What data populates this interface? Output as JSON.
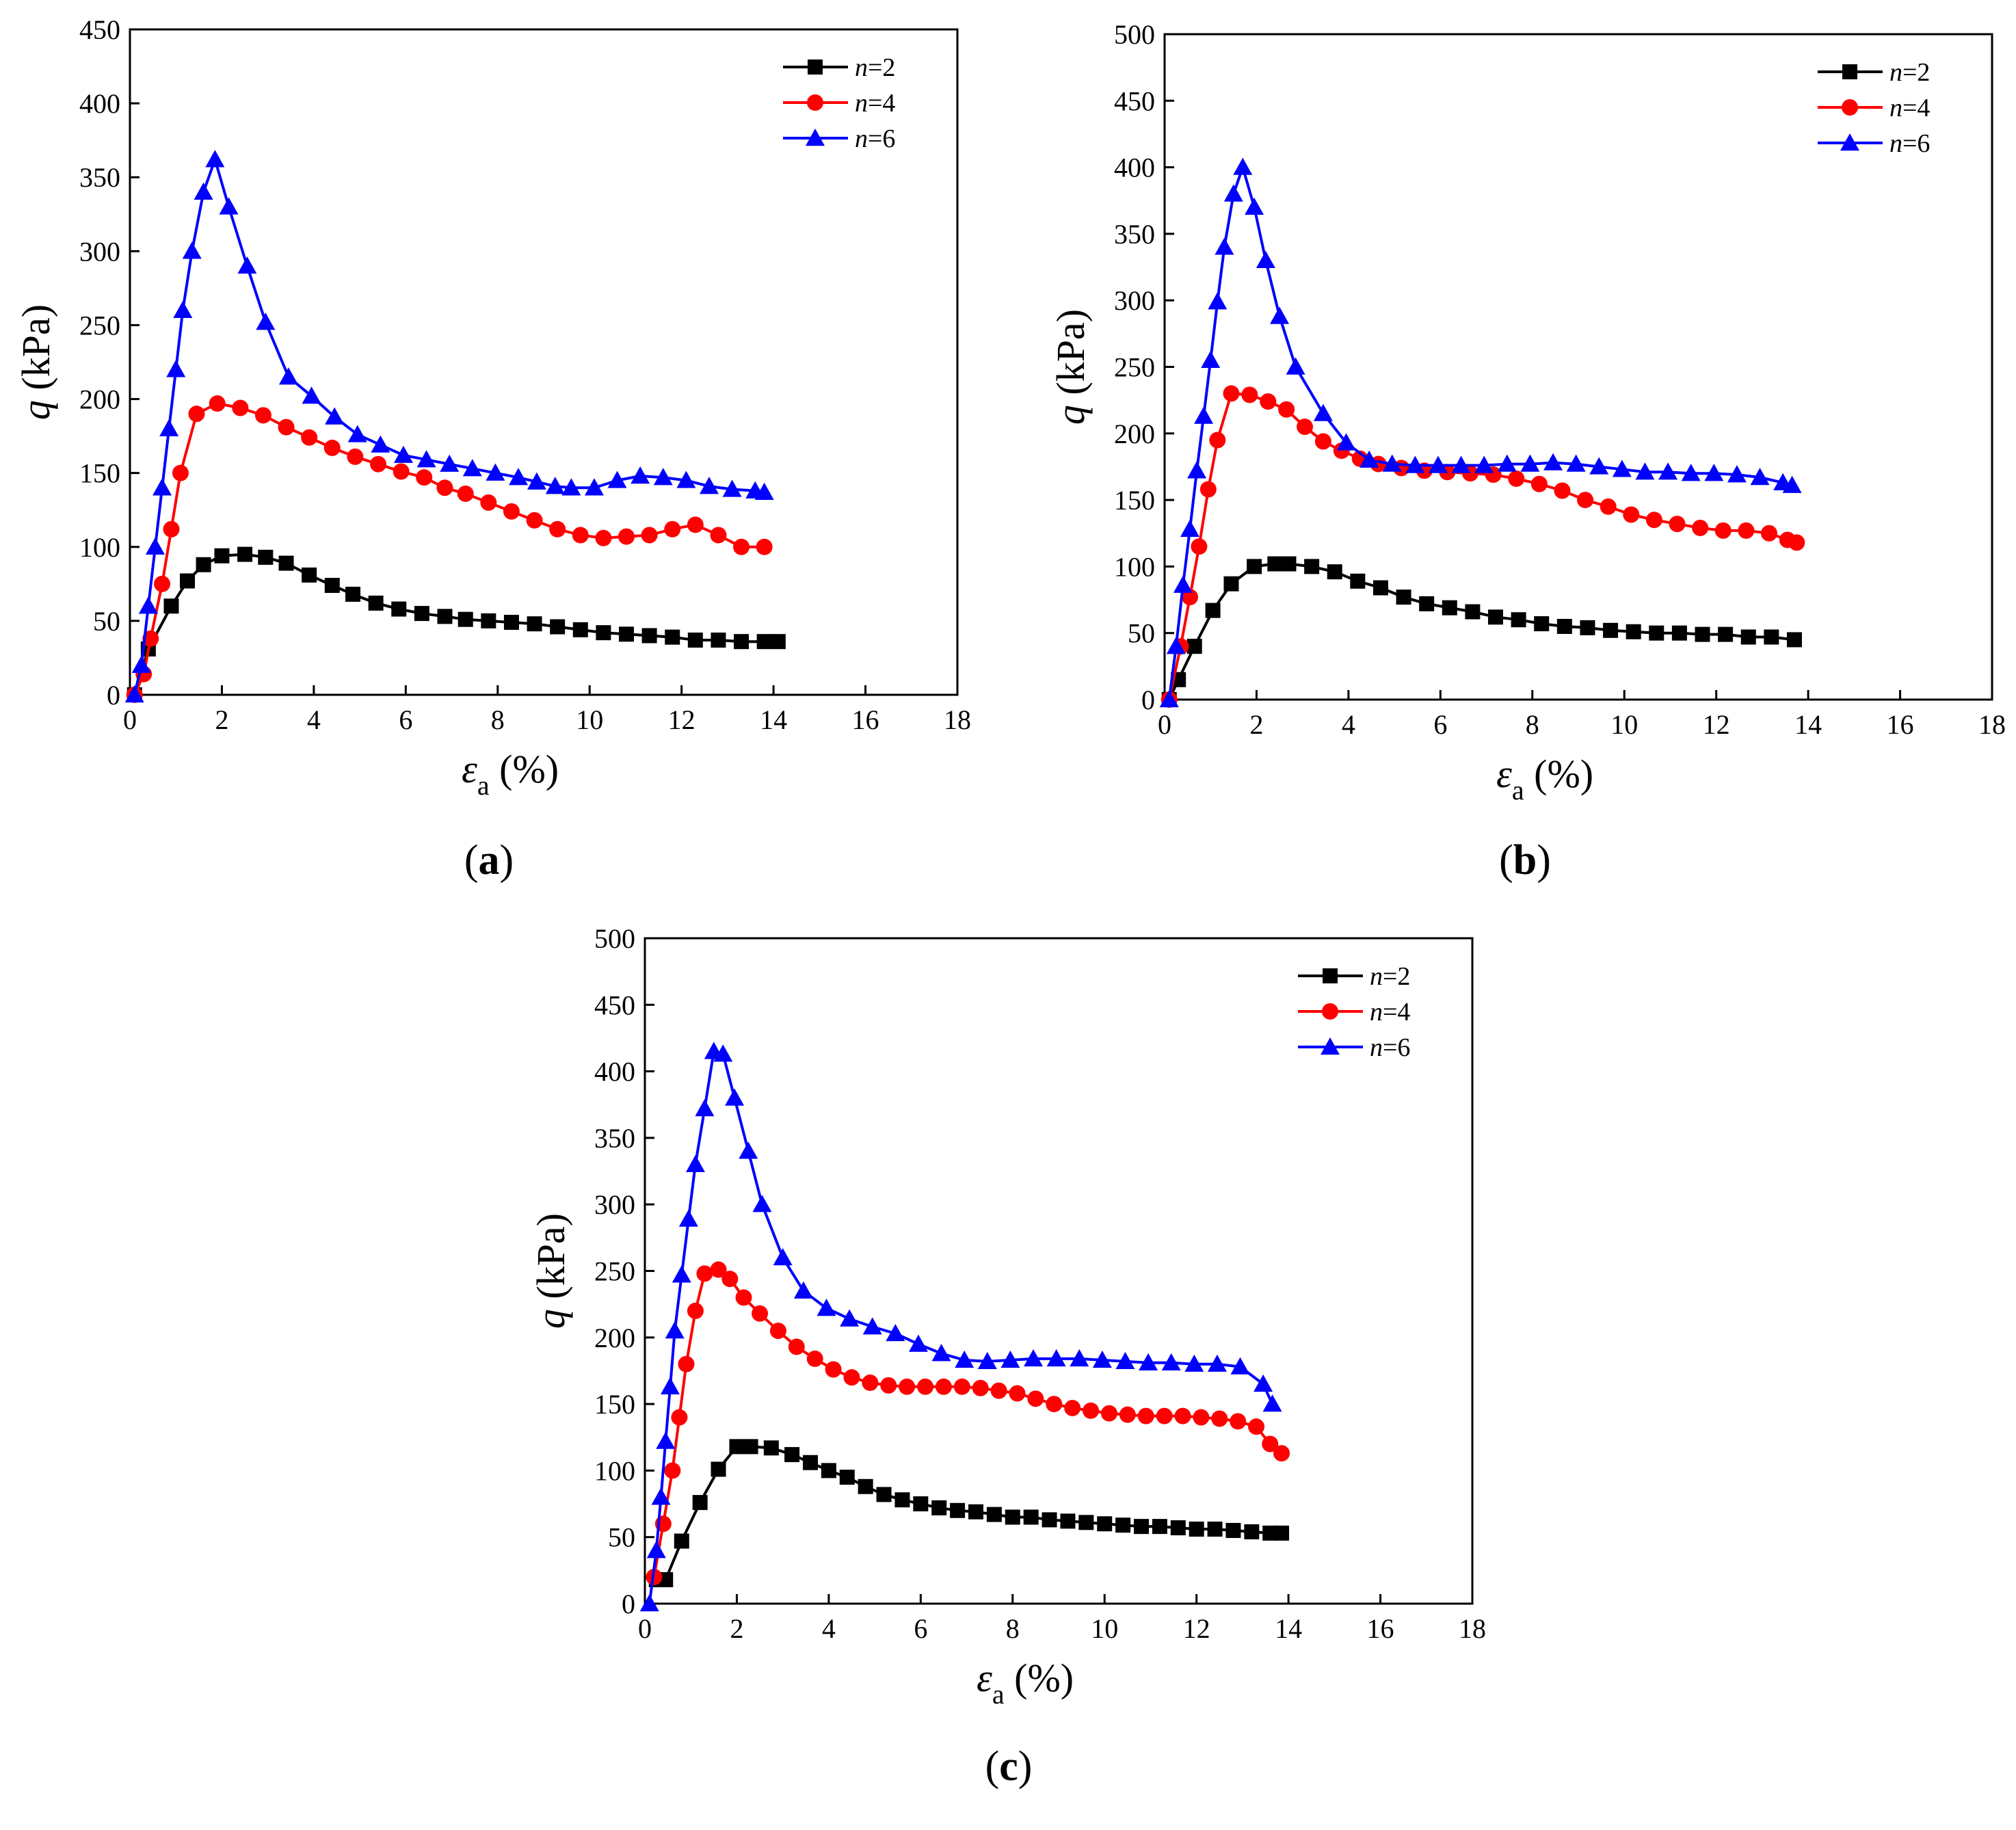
{
  "figure": {
    "panels": [
      {
        "id": "a",
        "label_open": "(",
        "label_letter": "a",
        "label_close": ")"
      },
      {
        "id": "b",
        "label_open": "(",
        "label_letter": "b",
        "label_close": ")"
      },
      {
        "id": "c",
        "label_open": "(",
        "label_letter": "c",
        "label_close": ")"
      }
    ]
  },
  "chart_data": [
    {
      "panel": "a",
      "type": "line",
      "xlabel_symbol": "ε",
      "xlabel_subscript": "a",
      "xlabel_unit": "(%)",
      "ylabel_symbol": "q",
      "ylabel_unit": "(kPa)",
      "xlim": [
        0,
        18
      ],
      "ylim": [
        0,
        450
      ],
      "xticks": [
        0,
        2,
        4,
        6,
        8,
        10,
        12,
        14,
        16,
        18
      ],
      "yticks": [
        0,
        50,
        100,
        150,
        200,
        250,
        300,
        350,
        400,
        450
      ],
      "legend_position": "top-right",
      "series": [
        {
          "name_var": "n",
          "name_value": "=2",
          "color": "#000000",
          "marker": "square",
          "x": [
            0.1,
            0.4,
            0.9,
            1.25,
            1.6,
            2.0,
            2.5,
            2.95,
            3.4,
            3.9,
            4.4,
            4.85,
            5.35,
            5.85,
            6.35,
            6.85,
            7.3,
            7.8,
            8.3,
            8.8,
            9.3,
            9.8,
            10.3,
            10.8,
            11.3,
            11.8,
            12.3,
            12.8,
            13.3,
            13.8,
            14.1
          ],
          "y": [
            0,
            31,
            60,
            77,
            88,
            94,
            95,
            93,
            89,
            81,
            74,
            68,
            62,
            58,
            55,
            53,
            51,
            50,
            49,
            48,
            46,
            44,
            42,
            41,
            40,
            39,
            37,
            37,
            36,
            36,
            36
          ]
        },
        {
          "name_var": "n",
          "name_value": "=4",
          "color": "#ff0000",
          "marker": "circle",
          "x": [
            0.1,
            0.3,
            0.45,
            0.7,
            0.9,
            1.1,
            1.45,
            1.9,
            2.4,
            2.9,
            3.4,
            3.9,
            4.4,
            4.9,
            5.4,
            5.9,
            6.4,
            6.85,
            7.3,
            7.8,
            8.3,
            8.8,
            9.3,
            9.8,
            10.3,
            10.8,
            11.3,
            11.8,
            12.3,
            12.8,
            13.3,
            13.8
          ],
          "y": [
            0,
            14,
            38,
            75,
            112,
            150,
            190,
            197,
            194,
            189,
            181,
            174,
            167,
            161,
            156,
            151,
            147,
            140,
            136,
            130,
            124,
            118,
            112,
            108,
            106,
            107,
            108,
            112,
            115,
            108,
            100,
            100
          ]
        },
        {
          "name_var": "n",
          "name_value": "=6",
          "color": "#0000ff",
          "marker": "triangle",
          "x": [
            0.1,
            0.25,
            0.4,
            0.55,
            0.7,
            0.85,
            1.0,
            1.15,
            1.35,
            1.6,
            1.85,
            2.15,
            2.55,
            2.95,
            3.45,
            3.95,
            4.45,
            4.95,
            5.45,
            5.95,
            6.45,
            6.95,
            7.45,
            7.95,
            8.45,
            8.85,
            9.25,
            9.6,
            10.1,
            10.6,
            11.1,
            11.6,
            12.1,
            12.6,
            13.1,
            13.6,
            13.8
          ],
          "y": [
            0,
            20,
            60,
            100,
            140,
            180,
            220,
            260,
            300,
            340,
            362,
            330,
            290,
            252,
            215,
            202,
            188,
            176,
            169,
            162,
            159,
            156,
            153,
            150,
            147,
            144,
            141,
            140,
            140,
            145,
            148,
            147,
            145,
            141,
            139,
            138,
            137
          ]
        }
      ]
    },
    {
      "panel": "b",
      "type": "line",
      "xlabel_symbol": "ε",
      "xlabel_subscript": "a",
      "xlabel_unit": "(%)",
      "ylabel_symbol": "q",
      "ylabel_unit": "(kPa)",
      "xlim": [
        0,
        18
      ],
      "ylim": [
        0,
        500
      ],
      "xticks": [
        0,
        2,
        4,
        6,
        8,
        10,
        12,
        14,
        16,
        18
      ],
      "yticks": [
        0,
        50,
        100,
        150,
        200,
        250,
        300,
        350,
        400,
        450,
        500
      ],
      "legend_position": "top-right",
      "series": [
        {
          "name_var": "n",
          "name_value": "=2",
          "color": "#000000",
          "marker": "square",
          "x": [
            0.1,
            0.3,
            0.65,
            1.05,
            1.45,
            1.95,
            2.4,
            2.7,
            3.2,
            3.7,
            4.2,
            4.7,
            5.2,
            5.7,
            6.2,
            6.7,
            7.2,
            7.7,
            8.2,
            8.7,
            9.2,
            9.7,
            10.2,
            10.7,
            11.2,
            11.7,
            12.2,
            12.7,
            13.2,
            13.7
          ],
          "y": [
            0,
            15,
            40,
            67,
            87,
            100,
            102,
            102,
            100,
            96,
            89,
            84,
            77,
            72,
            69,
            66,
            62,
            60,
            57,
            55,
            54,
            52,
            51,
            50,
            50,
            49,
            49,
            47,
            47,
            45
          ]
        },
        {
          "name_var": "n",
          "name_value": "=4",
          "color": "#ff0000",
          "marker": "circle",
          "x": [
            0.1,
            0.35,
            0.55,
            0.75,
            0.95,
            1.15,
            1.45,
            1.85,
            2.25,
            2.65,
            3.05,
            3.45,
            3.85,
            4.25,
            4.65,
            5.15,
            5.65,
            6.15,
            6.65,
            7.15,
            7.65,
            8.15,
            8.65,
            9.15,
            9.65,
            10.15,
            10.65,
            11.15,
            11.65,
            12.15,
            12.65,
            13.15,
            13.55,
            13.75
          ],
          "y": [
            0,
            40,
            77,
            115,
            158,
            195,
            230,
            229,
            224,
            218,
            205,
            194,
            187,
            181,
            177,
            174,
            172,
            171,
            170,
            169,
            166,
            162,
            157,
            150,
            145,
            139,
            135,
            132,
            129,
            127,
            127,
            125,
            120,
            118
          ]
        },
        {
          "name_var": "n",
          "name_value": "=6",
          "color": "#0000ff",
          "marker": "triangle",
          "x": [
            0.1,
            0.25,
            0.4,
            0.55,
            0.7,
            0.85,
            1.0,
            1.15,
            1.3,
            1.5,
            1.7,
            1.95,
            2.2,
            2.5,
            2.85,
            3.45,
            3.95,
            4.45,
            4.95,
            5.45,
            5.95,
            6.45,
            6.95,
            7.45,
            7.95,
            8.45,
            8.95,
            9.45,
            9.95,
            10.45,
            10.95,
            11.45,
            11.95,
            12.45,
            12.95,
            13.45,
            13.65
          ],
          "y": [
            0,
            40,
            86,
            128,
            172,
            213,
            255,
            299,
            340,
            380,
            400,
            370,
            330,
            288,
            250,
            215,
            193,
            180,
            177,
            176,
            176,
            176,
            176,
            177,
            177,
            178,
            177,
            175,
            173,
            171,
            171,
            170,
            170,
            169,
            167,
            163,
            161
          ]
        }
      ]
    },
    {
      "panel": "c",
      "type": "line",
      "xlabel_symbol": "ε",
      "xlabel_subscript": "a",
      "xlabel_unit": "(%)",
      "ylabel_symbol": "q",
      "ylabel_unit": "(kPa)",
      "xlim": [
        0,
        18
      ],
      "ylim": [
        0,
        500
      ],
      "xticks": [
        0,
        2,
        4,
        6,
        8,
        10,
        12,
        14,
        16,
        18
      ],
      "yticks": [
        0,
        50,
        100,
        150,
        200,
        250,
        300,
        350,
        400,
        450,
        500
      ],
      "legend_position": "top-right",
      "series": [
        {
          "name_var": "n",
          "name_value": "=2",
          "color": "#000000",
          "marker": "square",
          "x": [
            0.25,
            0.45,
            0.8,
            1.2,
            1.6,
            2.0,
            2.3,
            2.75,
            3.2,
            3.6,
            4.0,
            4.4,
            4.8,
            5.2,
            5.6,
            6.0,
            6.4,
            6.8,
            7.2,
            7.6,
            8.0,
            8.4,
            8.8,
            9.2,
            9.6,
            10.0,
            10.4,
            10.8,
            11.2,
            11.6,
            12.0,
            12.4,
            12.8,
            13.2,
            13.6,
            13.85
          ],
          "y": [
            18,
            18,
            47,
            76,
            101,
            118,
            118,
            117,
            112,
            106,
            100,
            95,
            88,
            82,
            78,
            75,
            72,
            70,
            69,
            67,
            65,
            65,
            63,
            62,
            61,
            60,
            59,
            58,
            58,
            57,
            56,
            56,
            55,
            54,
            53,
            53
          ]
        },
        {
          "name_var": "n",
          "name_value": "=4",
          "color": "#ff0000",
          "marker": "circle",
          "x": [
            0.2,
            0.4,
            0.6,
            0.75,
            0.9,
            1.1,
            1.3,
            1.6,
            1.85,
            2.15,
            2.5,
            2.9,
            3.3,
            3.7,
            4.1,
            4.5,
            4.9,
            5.3,
            5.7,
            6.1,
            6.5,
            6.9,
            7.3,
            7.7,
            8.1,
            8.5,
            8.9,
            9.3,
            9.7,
            10.1,
            10.5,
            10.9,
            11.3,
            11.7,
            12.1,
            12.5,
            12.9,
            13.3,
            13.6,
            13.85
          ],
          "y": [
            20,
            60,
            100,
            140,
            180,
            220,
            248,
            251,
            244,
            230,
            218,
            205,
            193,
            184,
            176,
            170,
            166,
            164,
            163,
            163,
            163,
            163,
            162,
            160,
            158,
            154,
            150,
            147,
            145,
            143,
            142,
            141,
            141,
            141,
            140,
            139,
            137,
            133,
            120,
            113
          ]
        },
        {
          "name_var": "n",
          "name_value": "=6",
          "color": "#0000ff",
          "marker": "triangle",
          "x": [
            0.1,
            0.25,
            0.35,
            0.45,
            0.55,
            0.65,
            0.8,
            0.95,
            1.1,
            1.3,
            1.5,
            1.7,
            1.95,
            2.25,
            2.55,
            3.0,
            3.45,
            3.95,
            4.45,
            4.95,
            5.45,
            5.95,
            6.45,
            6.95,
            7.45,
            7.95,
            8.45,
            8.95,
            9.45,
            9.95,
            10.45,
            10.95,
            11.45,
            11.95,
            12.45,
            12.95,
            13.45,
            13.65
          ],
          "y": [
            0,
            40,
            80,
            122,
            163,
            205,
            247,
            289,
            330,
            372,
            415,
            413,
            380,
            340,
            300,
            260,
            235,
            222,
            214,
            208,
            203,
            195,
            188,
            183,
            182,
            183,
            184,
            184,
            184,
            183,
            182,
            181,
            181,
            180,
            180,
            178,
            165,
            150
          ]
        }
      ]
    }
  ]
}
